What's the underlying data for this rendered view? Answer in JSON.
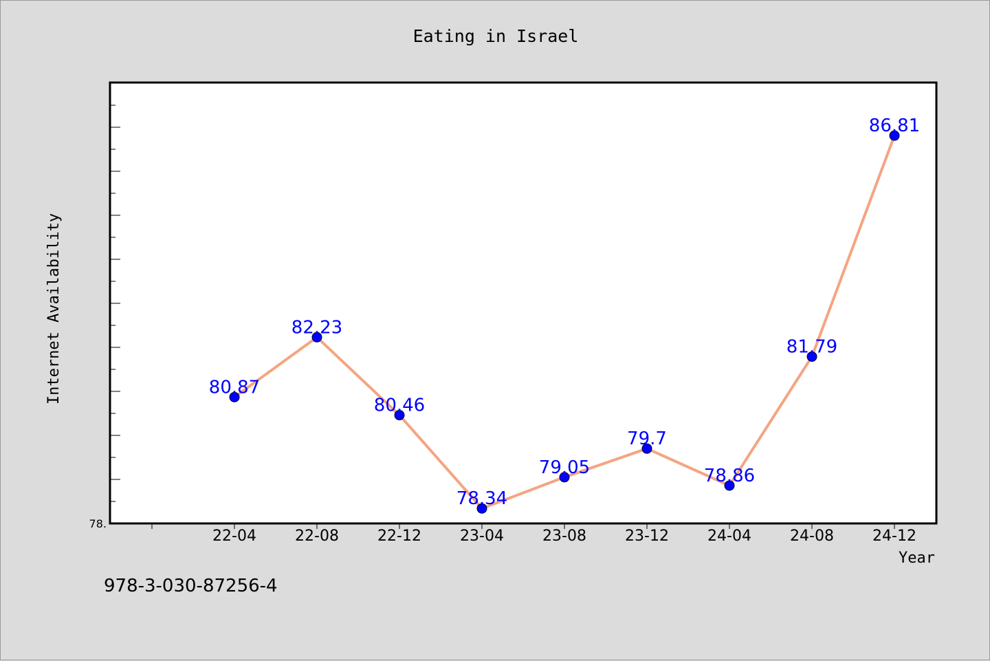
{
  "chart_data": {
    "type": "line",
    "title": "Eating in Israel",
    "xlabel": "Year",
    "ylabel": "Internet Availability",
    "categories": [
      "22-04",
      "22-08",
      "22-12",
      "23-04",
      "23-08",
      "23-12",
      "24-04",
      "24-08",
      "24-12"
    ],
    "values": [
      80.87,
      82.23,
      80.46,
      78.34,
      79.05,
      79.7,
      78.86,
      81.79,
      86.81
    ],
    "data_labels": [
      "80.87",
      "82.23",
      "80.46",
      "78.34",
      "79.05",
      "79.7",
      "78.86",
      "81.79",
      "86.81"
    ],
    "ylim": [
      78,
      88
    ],
    "ytick_label": "78.",
    "grid": false,
    "legend": "none",
    "colors": {
      "background": "#dcdcdc",
      "plot_area": "#ffffff",
      "line": "#f4a582",
      "marker": "#0000ff",
      "data_label": "#0000ff"
    }
  },
  "footnote": "978-3-030-87256-4"
}
